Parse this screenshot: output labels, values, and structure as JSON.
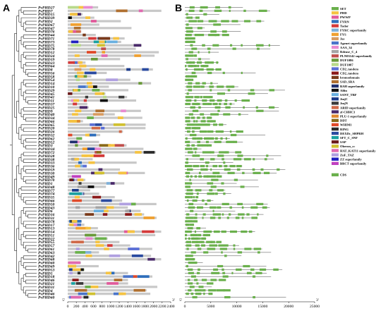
{
  "panels": {
    "a_label": "A",
    "b_label": "B"
  },
  "genes": [
    "PvPHD27",
    "PvPHD7",
    "PvPHD15",
    "PvPHD39",
    "PvPHD2",
    "PvPHD67",
    "PvPHD47",
    "PvPHD76",
    "PvPHD44",
    "PvPHD71",
    "PvPHD73",
    "PvPHD75",
    "PvPHD78",
    "PvPHD12",
    "PvPHD24",
    "PvPHD19",
    "PvPHD23",
    "PvPHD64",
    "PvPHD8",
    "PvPHD56",
    "PvPHD58",
    "PvPHD54",
    "PvPHD14",
    "PvPHD10",
    "PvPHD29",
    "PvPHD45",
    "PvPHD41",
    "PvPHD11",
    "PvPHD37",
    "PvPHD25",
    "PvPHD9",
    "PvPHD40",
    "PvPHD34",
    "PvPHD66",
    "PvPHD65",
    "PvPHD20",
    "PvPHD26",
    "PvPHD32",
    "PvPHD62",
    "PvPHD52",
    "PvPHD3",
    "PvPHD34",
    "PvPHD72",
    "PvPHD28",
    "PvPHD38",
    "PvPHD33",
    "PvPHD36",
    "PvPHD59",
    "PvPHD30",
    "PvPHD49",
    "PvPHD70",
    "PvPHD1",
    "PvPHD48",
    "PvPHD77",
    "PvPHD74",
    "PvPHD35",
    "PvPHD66",
    "PvPHD50",
    "PvPHD43",
    "PvPHD6",
    "PvPHD16",
    "PvPHD31",
    "PvPHD78",
    "PvPHD17",
    "PvPHD13",
    "PvPHD14",
    "PvPHD51",
    "PvPHD22",
    "PvPHD55",
    "PvPHD57",
    "PvPHD61",
    "PvPHD63",
    "PvPHD42",
    "PvPHD68",
    "PvPHD60",
    "PvPHD69",
    "PvPHD53",
    "PvPHD5",
    "PvPHD18",
    "PvPHD46",
    "PvPHD21",
    "PvPHD31",
    "PvPHD4",
    "PvPHD46",
    "PvPHD60"
  ],
  "axis_a": {
    "start": "5'",
    "end": "3'",
    "ticks": [
      0,
      200,
      400,
      600,
      800,
      1000,
      1200,
      1400,
      1600,
      1800,
      2000,
      2200,
      2400
    ],
    "max": 2400
  },
  "axis_b": {
    "start": "5'",
    "end": "3'",
    "ticks": [
      0,
      5000,
      10000,
      15000,
      20000,
      25000
    ],
    "max": 25000
  },
  "legend": [
    {
      "label": "SET",
      "color": "#6ab04c"
    },
    {
      "label": "PHD",
      "color": "#f5c342"
    },
    {
      "label": "PWWP",
      "color": "#e05a9a"
    },
    {
      "label": "FYRN",
      "color": "#2f6ebb"
    },
    {
      "label": "Tudor",
      "color": "#d43a3a"
    },
    {
      "label": "FYRC superfamily",
      "color": "#7fb0d9"
    },
    {
      "label": "FYS",
      "color": "#f0a030"
    },
    {
      "label": "Jas",
      "color": "#d89c62"
    },
    {
      "label": "Agenet superfamily",
      "color": "#4a74c9"
    },
    {
      "label": "AAA_34",
      "color": "#e88ad0"
    },
    {
      "label": "Rdease_C_4",
      "color": "#a5a5a5"
    },
    {
      "label": "PLN03142 superfamily",
      "color": "#c0504d"
    },
    {
      "label": "DUF1086",
      "color": "#6a9a3a"
    },
    {
      "label": "DUF1087",
      "color": "#b8d98a"
    },
    {
      "label": "CD2_tandem",
      "color": "#5b6fd6"
    },
    {
      "label": "CD2_tandem",
      "color": "#8b1a1a"
    },
    {
      "label": "bromodomain",
      "color": "#7a3a1a"
    },
    {
      "label": "SAD_SRA",
      "color": "#b07030"
    },
    {
      "label": "BAH superfamily",
      "color": "#1f2f6f"
    },
    {
      "label": "Alfin",
      "color": "#111111"
    },
    {
      "label": "SANT_TRF",
      "color": "#6ab0e0"
    },
    {
      "label": "JmjC",
      "color": "#1a3a8a"
    },
    {
      "label": "JmjN",
      "color": "#3a3a3a"
    },
    {
      "label": "ARID superfamily",
      "color": "#d06a4a"
    },
    {
      "label": "zf-CHHC3",
      "color": "#4a2a6a"
    },
    {
      "label": "PLU-1 superfamily",
      "color": "#e08a30"
    },
    {
      "label": "DDT",
      "color": "#8a6a1a"
    },
    {
      "label": "WHIM1",
      "color": "#e04a2a"
    },
    {
      "label": "RING",
      "color": "#2a2a2a"
    },
    {
      "label": "DEXDc_SHPRH",
      "color": "#2a4aa0"
    },
    {
      "label": "SFT_C_SNF",
      "color": "#1aa0a0"
    },
    {
      "label": "SAP",
      "color": "#6a1a1a"
    },
    {
      "label": "Oberon_cc",
      "color": "#d0c030"
    },
    {
      "label": "HAT_KAT11 superfamily",
      "color": "#e06ab0"
    },
    {
      "label": "ZnF_TAZ",
      "color": "#b0a0e0"
    },
    {
      "label": "ZZ superfamily",
      "color": "#2020c0"
    },
    {
      "label": "BRCT superfamily",
      "color": "#c040c0"
    },
    {
      "label": "CDS",
      "color": "#6ab04c"
    }
  ],
  "colors": {
    "protein_backbone": "#c8c8c8",
    "exon": "#6ab04c",
    "intron": "#444444",
    "tree": "#222222"
  }
}
